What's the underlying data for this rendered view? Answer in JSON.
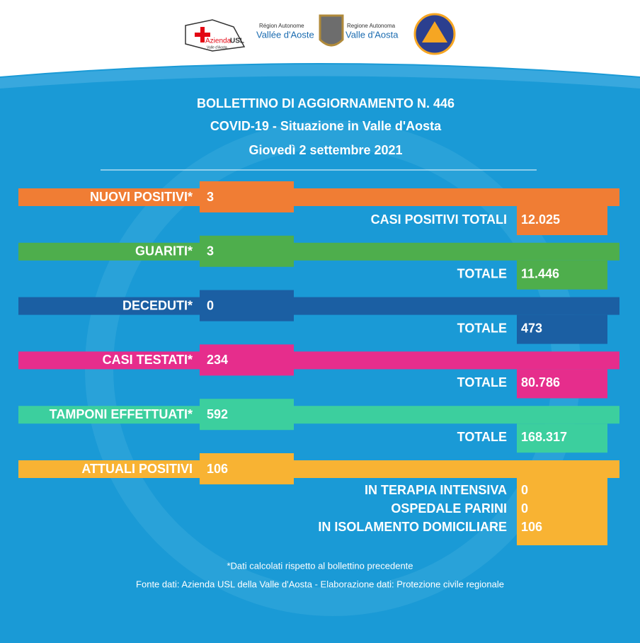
{
  "header": {
    "logos": [
      {
        "name": "Azienda",
        "accent": "USL",
        "subtitle": "Valle d'Aosta"
      },
      {
        "line1": "Région Autonome",
        "line2": "Vallée d'Aoste"
      },
      {
        "line1": "Regione Autonoma",
        "line2": "Valle d'Aosta"
      }
    ]
  },
  "title": {
    "line1": "BOLLETTINO DI AGGIORNAMENTO N. 446",
    "line2": "COVID-19 - Situazione in Valle d'Aosta",
    "line3": "Giovedì 2 settembre 2021"
  },
  "rows": [
    {
      "label": "NUOVI POSITIVI*",
      "value": "3",
      "total_label": "CASI POSITIVI TOTALI",
      "total": "12.025",
      "color": "#f07d34"
    },
    {
      "label": "GUARITI*",
      "value": "3",
      "total_label": "TOTALE",
      "total": "11.446",
      "color": "#4eae4c"
    },
    {
      "label": "DECEDUTI*",
      "value": "0",
      "total_label": "TOTALE",
      "total": "473",
      "color": "#1b5fa3"
    },
    {
      "label": "CASI TESTATI*",
      "value": "234",
      "total_label": "TOTALE",
      "total": "80.786",
      "color": "#e62d8c"
    },
    {
      "label": "TAMPONI EFFETTUATI*",
      "value": "592",
      "total_label": "TOTALE",
      "total": "168.317",
      "color": "#3ccf9e"
    },
    {
      "label": "ATTUALI POSITIVI",
      "value": "106",
      "details": [
        {
          "label": "IN TERAPIA INTENSIVA",
          "value": "0"
        },
        {
          "label": "OSPEDALE PARINI",
          "value": "0"
        },
        {
          "label": "IN ISOLAMENTO DOMICILIARE",
          "value": "106"
        }
      ],
      "color": "#f8b333"
    }
  ],
  "footnote": "*Dati calcolati rispetto al bollettino precedente",
  "source": "Fonte dati: Azienda USL della Valle d'Aosta - Elaborazione dati: Protezione civile regionale"
}
